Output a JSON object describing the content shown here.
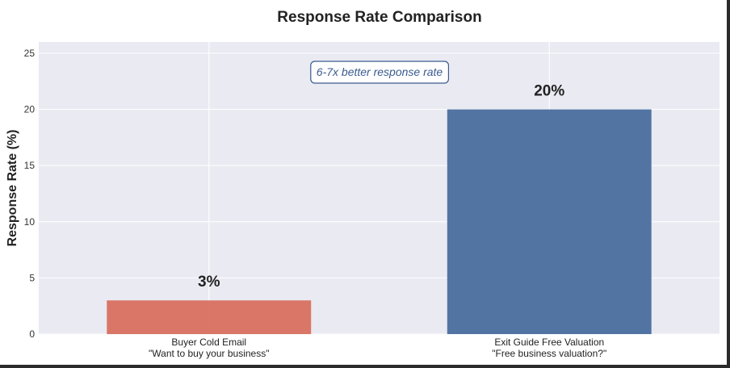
{
  "chart_data": {
    "type": "bar",
    "title": "Response Rate Comparison",
    "xlabel": "",
    "ylabel": "Response Rate (%)",
    "ylim": [
      0,
      26
    ],
    "yticks": [
      0,
      5,
      10,
      15,
      20,
      25
    ],
    "grid": true,
    "categories": [
      "Buyer Cold Email\n\"Want to buy your business\"",
      "Exit Guide Free Valuation\n\"Free business valuation?\""
    ],
    "category_lines": [
      [
        "Buyer Cold Email",
        "\"Want to buy your business\""
      ],
      [
        "Exit Guide Free Valuation",
        "\"Free business valuation?\""
      ]
    ],
    "values": [
      3,
      20
    ],
    "data_labels": [
      "3%",
      "20%"
    ],
    "colors": [
      "#d9705f",
      "#4a6e9e"
    ],
    "annotation": "6-7x better response rate",
    "annotation_color": "#3a5a90",
    "background": "#eaeaf2"
  }
}
